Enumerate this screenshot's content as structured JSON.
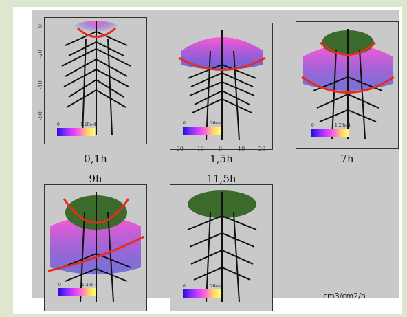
{
  "panels": [
    {
      "label": "0,1h",
      "cbar_min": "0",
      "cbar_max": "1.26e-4"
    },
    {
      "label": "1,5h",
      "cbar_min": "0",
      "cbar_max": "1.26e-4"
    },
    {
      "label": "7h",
      "cbar_min": "0",
      "cbar_max": "1.26e-4"
    },
    {
      "label": "9h",
      "cbar_min": "0",
      "cbar_max": "1.26e-4"
    },
    {
      "label": "11,5h",
      "cbar_min": "0",
      "cbar_max": "1.26e-4"
    }
  ],
  "y_ticks": [
    "0",
    "-20",
    "-40",
    "-60"
  ],
  "x_ticks": [
    "-20",
    "-10",
    "0",
    "10",
    "20"
  ],
  "unit_label": "cm3/cm2/h",
  "colors": {
    "curve": "#e82c1c",
    "foliage": "#3b6b2a",
    "canopy_low": "#3f3adf",
    "canopy_high": "#ff5ad6"
  }
}
